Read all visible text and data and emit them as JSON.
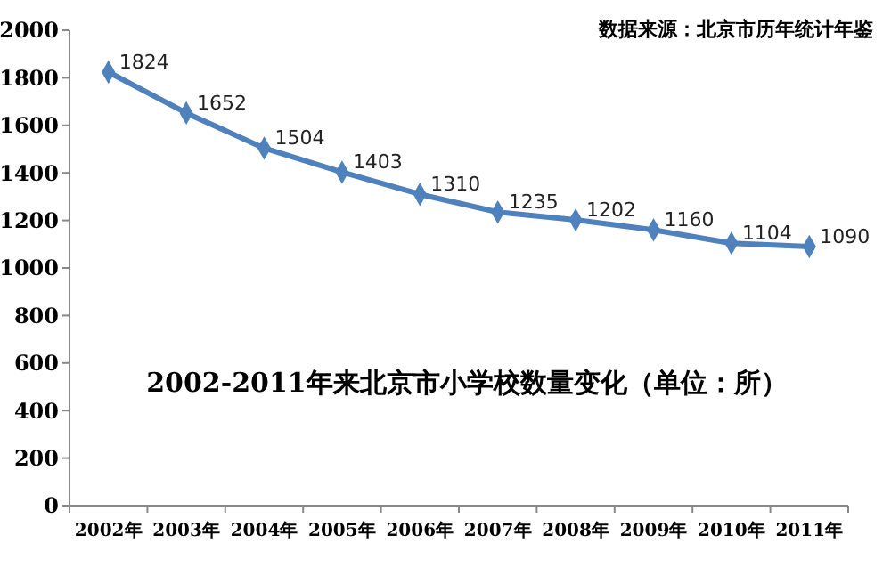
{
  "chart_data": {
    "type": "line",
    "title": "2002-2011年来北京市小学校数量变化（单位：所）",
    "annotations": [
      "数据来源：北京市历年统计年鉴"
    ],
    "categories": [
      "2002年",
      "2003年",
      "2004年",
      "2005年",
      "2006年",
      "2007年",
      "2008年",
      "2009年",
      "2010年",
      "2011年"
    ],
    "series": [
      {
        "color": "#4f81bd",
        "values": [
          1824,
          1652,
          1504,
          1403,
          1310,
          1235,
          1202,
          1160,
          1104,
          1090
        ]
      }
    ],
    "ylim": [
      0,
      2000
    ],
    "yticks": [
      0,
      200,
      400,
      600,
      800,
      1000,
      1200,
      1400,
      1600,
      1800,
      2000
    ],
    "grid": false,
    "marker": "diamond",
    "line_style": "solid",
    "data_labels": true
  }
}
